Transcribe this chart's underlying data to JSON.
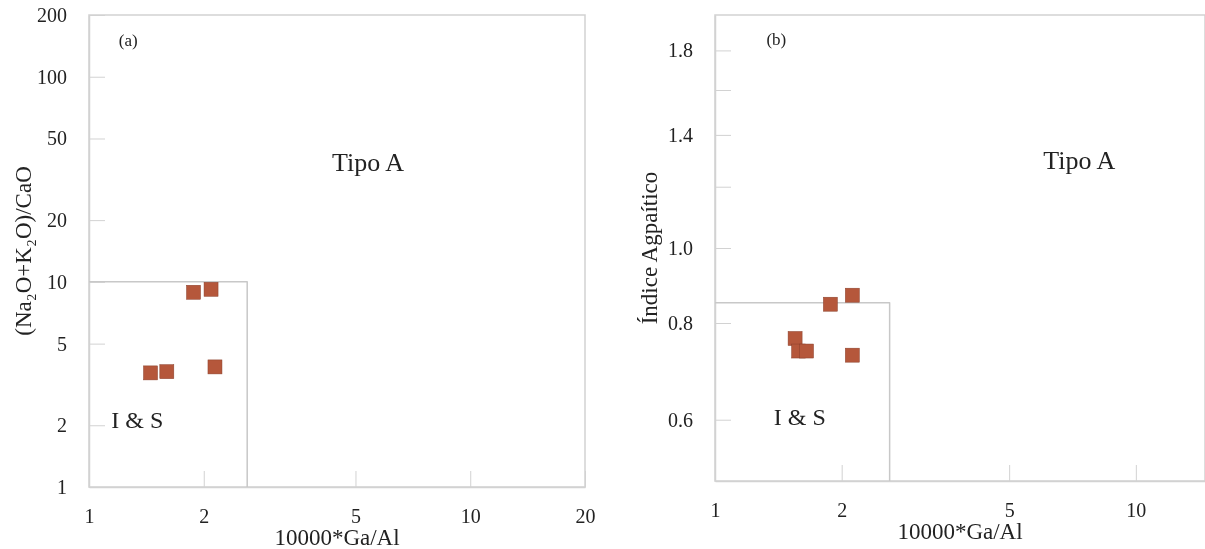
{
  "chart_data": [
    {
      "type": "scatter",
      "xlabel": "10000*Ga/Al",
      "ylabel": "(Na₂O+K₂O)/CaO",
      "log": "xy",
      "xlim": [
        1,
        20
      ],
      "ylim": [
        1,
        200
      ],
      "xticks": [
        1,
        2,
        5,
        10,
        20
      ],
      "yticks": [
        1,
        2,
        5,
        10,
        20,
        50,
        100,
        200
      ],
      "grid": false,
      "annotations": [
        "(a)",
        "Tipo A",
        "I & S"
      ],
      "series": [
        {
          "type": "line",
          "color": "#c8c8c8",
          "marker": "none",
          "x": [
            1,
            2.6,
            2.6
          ],
          "values": [
            10,
            10,
            1
          ]
        },
        {
          "color": "#b5573b",
          "marker": "square",
          "x": [
            1.45,
            1.6,
            1.88,
            2.09,
            2.14
          ],
          "values": [
            3.6,
            3.65,
            8.9,
            9.2,
            3.85
          ]
        }
      ]
    },
    {
      "type": "scatter",
      "xlabel": "10000*Ga/Al",
      "ylabel": "Índice Agpaítico",
      "log": "xy",
      "xlim": [
        1,
        14.6
      ],
      "ylim": [
        0.5,
        2.0
      ],
      "xticks": [
        1,
        2,
        5,
        10
      ],
      "yticks": [
        0.6,
        0.8,
        {
          "value": 1.0,
          "label": "1.0"
        },
        {
          "value": 1.2,
          "label": null
        },
        1.4,
        {
          "value": 1.6,
          "label": null
        },
        1.8
      ],
      "grid": false,
      "annotations": [
        "(b)",
        "Tipo A",
        "I & S"
      ],
      "series": [
        {
          "type": "line",
          "color": "#c8c8c8",
          "marker": "none",
          "x": [
            1,
            2.6,
            2.6
          ],
          "values": [
            0.85,
            0.85,
            0.5
          ]
        },
        {
          "color": "#b5573b",
          "marker": "square",
          "x": [
            1.55,
            1.58,
            1.65,
            1.88,
            2.12,
            2.12
          ],
          "values": [
            0.764,
            0.736,
            0.736,
            0.846,
            0.869,
            0.727
          ]
        }
      ]
    }
  ]
}
